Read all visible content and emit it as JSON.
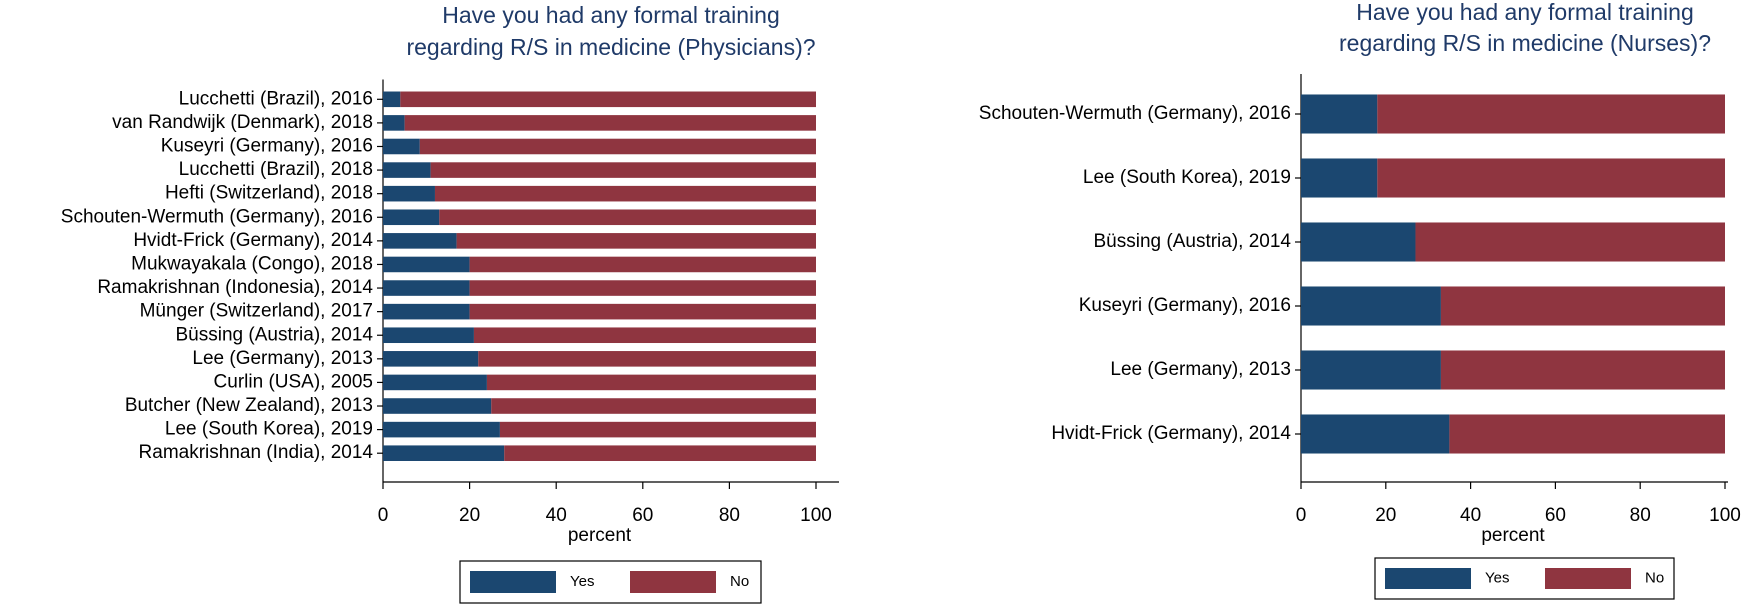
{
  "chart_data": [
    {
      "type": "bar",
      "orientation": "horizontal",
      "stacked": true,
      "title": [
        "Have you had any formal training",
        "regarding R/S in medicine (Physicians)?"
      ],
      "categories": [
        "Lucchetti (Brazil), 2016",
        "van Randwijk (Denmark), 2018",
        "Kuseyri (Germany), 2016",
        "Lucchetti (Brazil), 2018",
        "Hefti (Switzerland), 2018",
        "Schouten-Wermuth (Germany), 2016",
        "Hvidt-Frick (Germany), 2014",
        "Mukwayakala (Congo), 2018",
        "Ramakrishnan (Indonesia), 2014",
        "Münger (Switzerland), 2017",
        "Büssing (Austria), 2014",
        "Lee (Germany), 2013",
        "Curlin (USA), 2005",
        "Butcher (New Zealand), 2013",
        "Lee (South Korea), 2019",
        "Ramakrishnan (India), 2014"
      ],
      "series": [
        {
          "name": "Yes",
          "color": "#1b4770",
          "values": [
            4,
            5,
            8.5,
            11,
            12,
            13,
            17,
            20,
            20,
            20,
            21,
            22,
            24,
            25,
            27,
            28
          ]
        },
        {
          "name": "No",
          "color": "#8f3540",
          "values": [
            96,
            95,
            91.5,
            89,
            88,
            87,
            83,
            80,
            80,
            80,
            79,
            78,
            76,
            75,
            73,
            72
          ]
        }
      ],
      "xlim": [
        0,
        100
      ],
      "xticks": [
        0,
        20,
        40,
        60,
        80,
        100
      ],
      "xlabel": "percent",
      "legend": "bottom"
    },
    {
      "type": "bar",
      "orientation": "horizontal",
      "stacked": true,
      "title": [
        "Have you had any formal training",
        "regarding R/S in medicine (Nurses)?"
      ],
      "categories": [
        "Schouten-Wermuth (Germany), 2016",
        "Lee (South Korea), 2019",
        "Büssing (Austria), 2014",
        "Kuseyri (Germany), 2016",
        "Lee (Germany), 2013",
        "Hvidt-Frick (Germany), 2014"
      ],
      "series": [
        {
          "name": "Yes",
          "color": "#1b4770",
          "values": [
            18,
            18,
            27,
            33,
            33,
            35
          ]
        },
        {
          "name": "No",
          "color": "#8f3540",
          "values": [
            82,
            82,
            73,
            67,
            67,
            65
          ]
        }
      ],
      "xlim": [
        0,
        100
      ],
      "xticks": [
        0,
        20,
        40,
        60,
        80,
        100
      ],
      "xlabel": "percent",
      "legend": "bottom"
    }
  ]
}
